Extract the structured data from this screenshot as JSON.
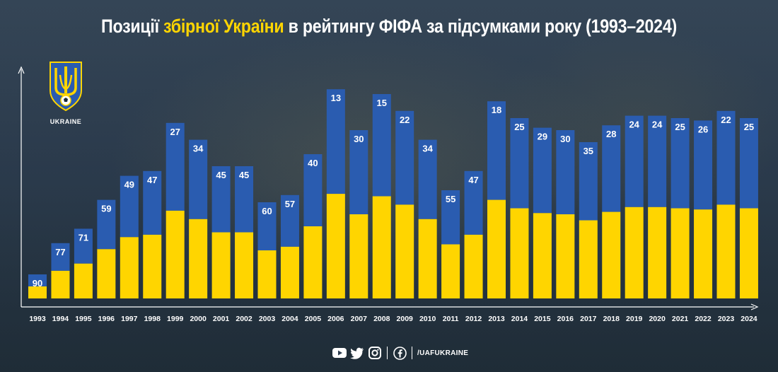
{
  "title": {
    "part1": "Позиції ",
    "highlight": "збірної України",
    "part2": " в рейтингу ФІФА за підсумками року (1993–2024)"
  },
  "logo": {
    "label": "UKRAINE",
    "icon": "trident-crest-icon"
  },
  "colors": {
    "bar_top": "#2a5cb0",
    "bar_bottom": "#ffd500",
    "text": "#ffffff",
    "axis": "#ffffff"
  },
  "chart_data": {
    "type": "bar",
    "title": "Позиції збірної України в рейтингу ФІФА за підсумками року (1993–2024)",
    "categories": [
      "1993",
      "1994",
      "1995",
      "1996",
      "1997",
      "1998",
      "1999",
      "2000",
      "2001",
      "2002",
      "2003",
      "2004",
      "2005",
      "2006",
      "2007",
      "2008",
      "2009",
      "2010",
      "2011",
      "2012",
      "2013",
      "2014",
      "2015",
      "2016",
      "2017",
      "2018",
      "2019",
      "2020",
      "2021",
      "2022",
      "2023",
      "2024"
    ],
    "values": [
      90,
      77,
      71,
      59,
      49,
      47,
      27,
      34,
      45,
      45,
      60,
      57,
      40,
      13,
      30,
      15,
      22,
      34,
      55,
      47,
      18,
      25,
      29,
      30,
      35,
      28,
      24,
      24,
      25,
      26,
      22,
      25
    ],
    "ylim": [
      100,
      0
    ],
    "y_reversed": true,
    "grid": false,
    "legend": "none",
    "data_labels": true
  },
  "footer": {
    "icons": [
      "youtube-icon",
      "twitter-icon",
      "instagram-icon",
      "facebook-icon"
    ],
    "handle": "/UAFUKRAINE"
  }
}
